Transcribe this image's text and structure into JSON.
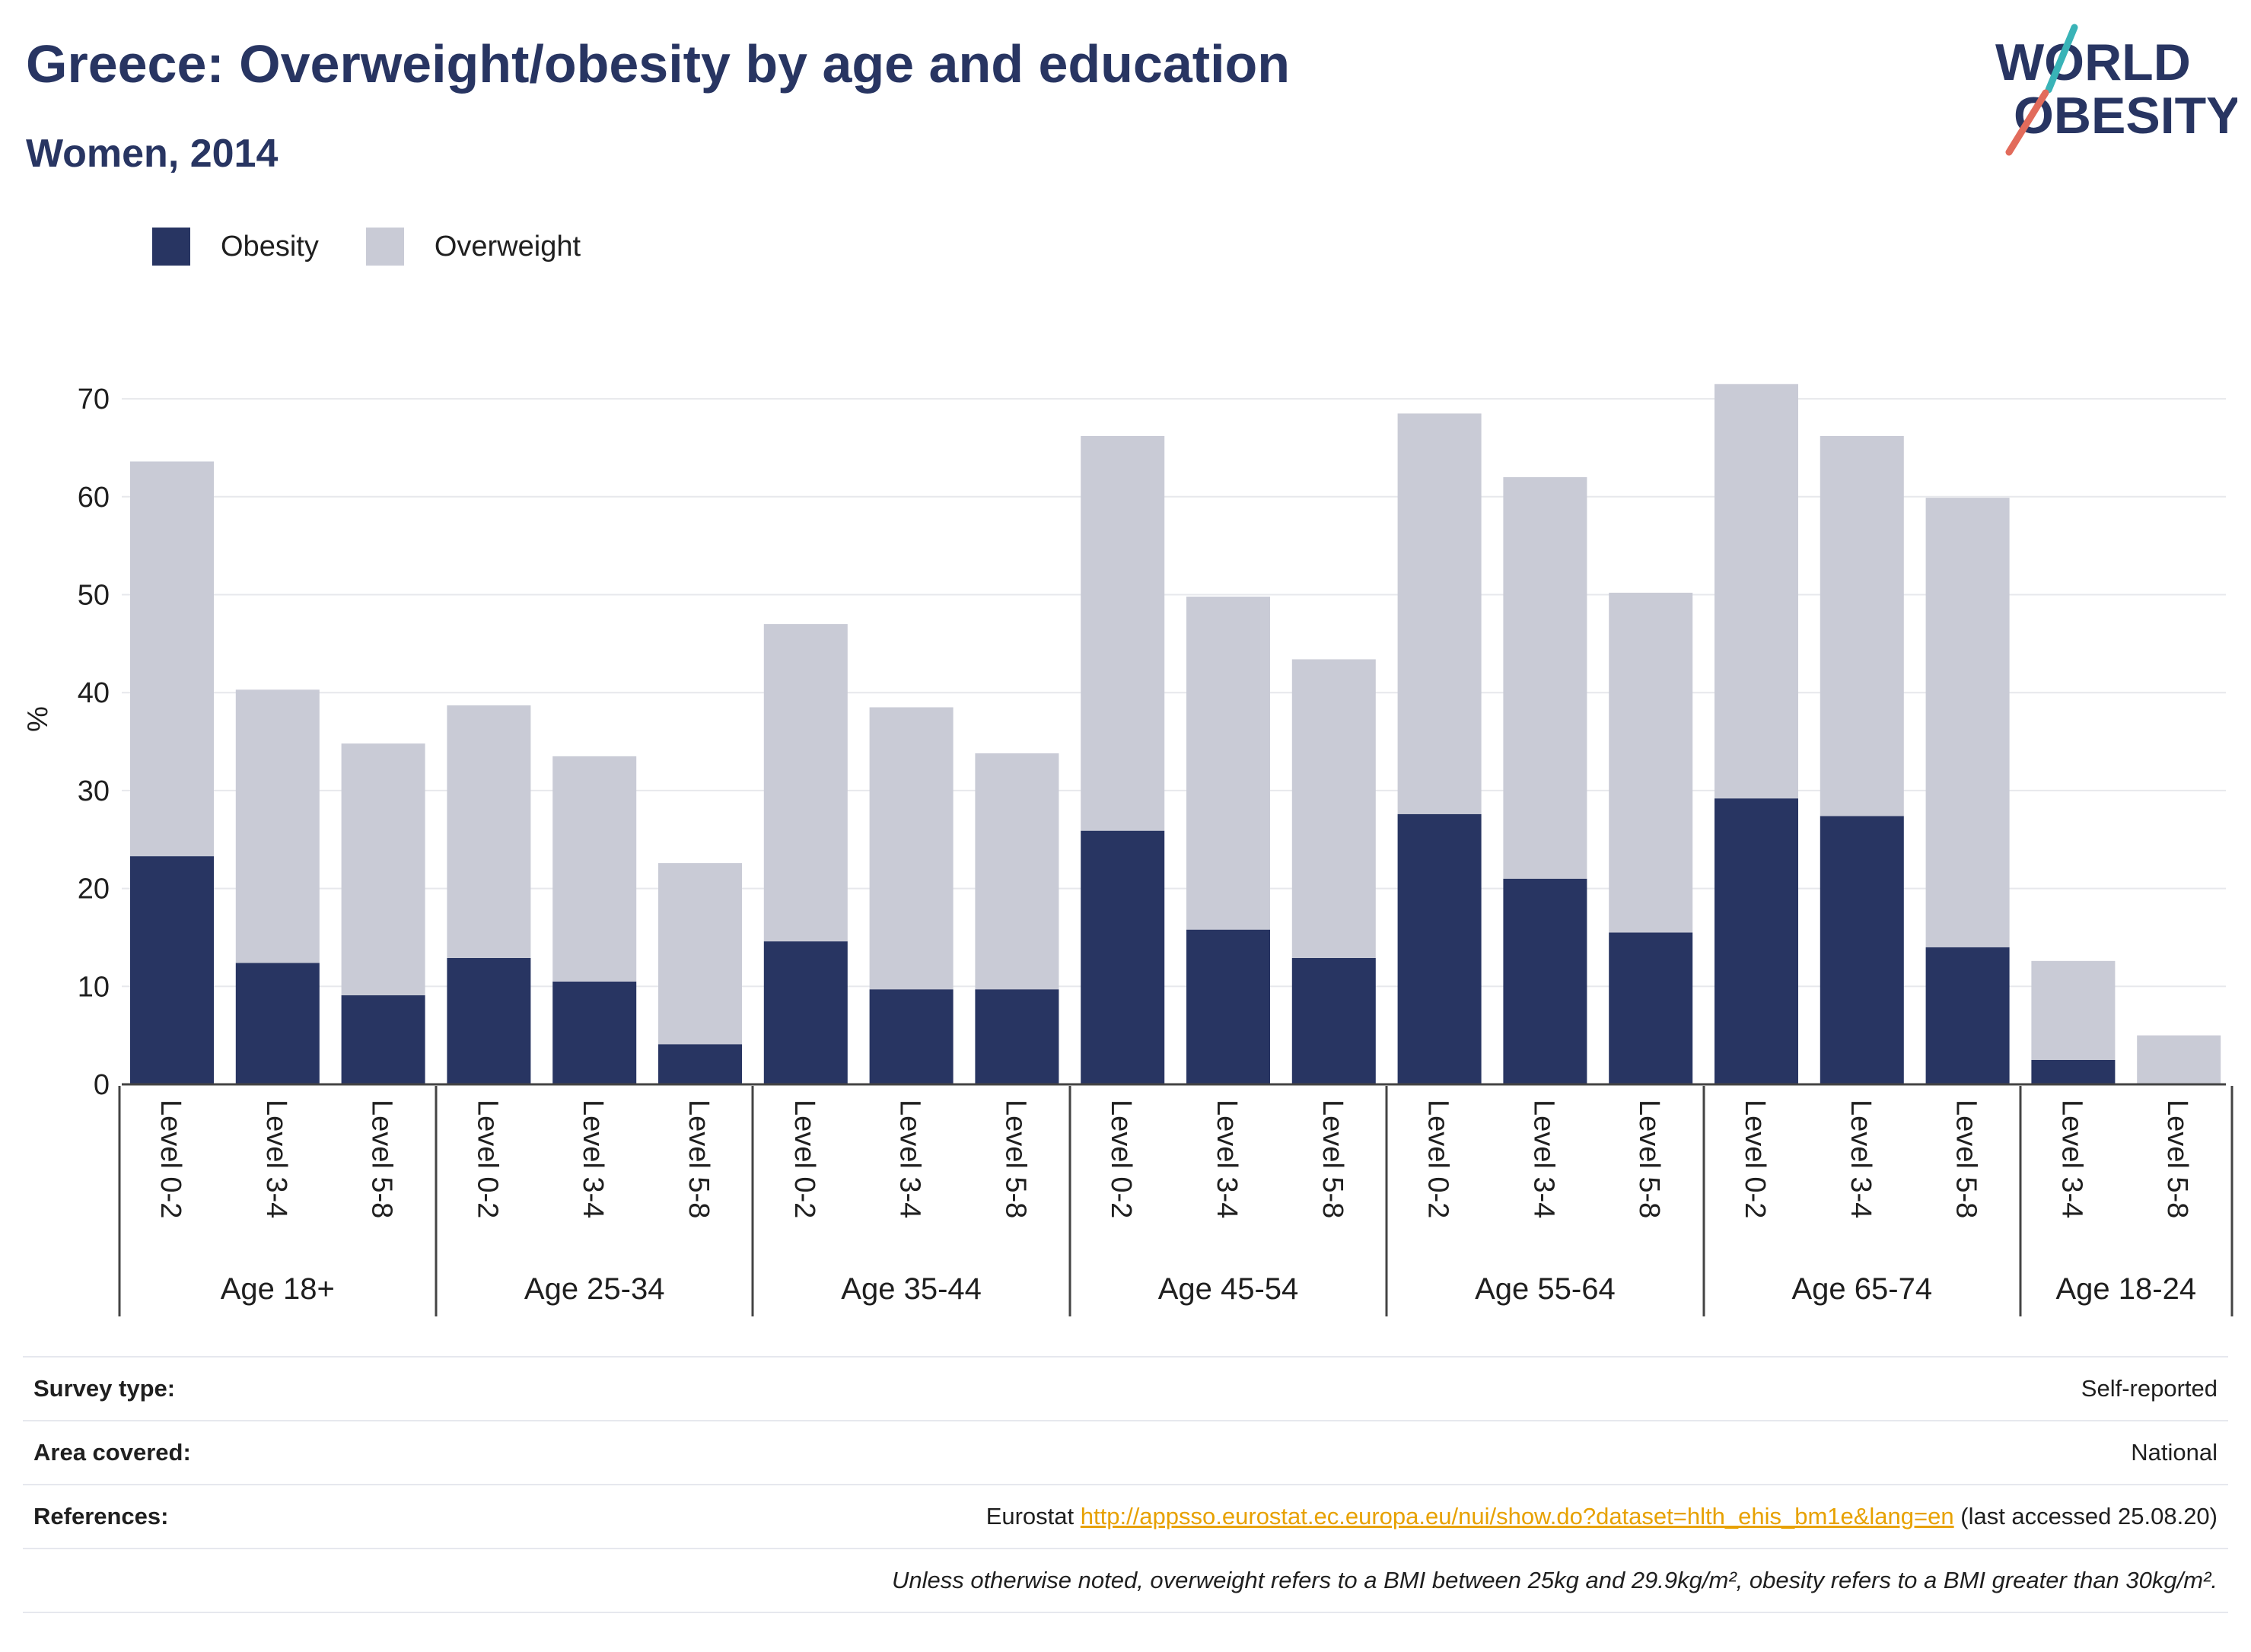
{
  "header": {
    "title": "Greece: Overweight/obesity by age and education",
    "subtitle": "Women, 2014"
  },
  "logo": {
    "line1": "WORLD",
    "line2": "OBESITY",
    "icon": "world-obesity-slash-logo"
  },
  "colors": {
    "obesity": "#283562",
    "overweight": "#c9cbd6",
    "accent_teal": "#39b3b7",
    "accent_coral": "#e26b5b",
    "link": "#e7a100"
  },
  "chart_data": {
    "type": "bar",
    "stacked": true,
    "ylabel": "%",
    "ylim": [
      0,
      72
    ],
    "yticks": [
      0,
      10,
      20,
      30,
      40,
      50,
      60,
      70
    ],
    "grid": true,
    "legend_position": "top-left",
    "groups": [
      {
        "label": "Age 18+",
        "categories": [
          "Level 0-2",
          "Level 3-4",
          "Level 5-8"
        ]
      },
      {
        "label": "Age 25-34",
        "categories": [
          "Level 0-2",
          "Level 3-4",
          "Level 5-8"
        ]
      },
      {
        "label": "Age 35-44",
        "categories": [
          "Level 0-2",
          "Level 3-4",
          "Level 5-8"
        ]
      },
      {
        "label": "Age 45-54",
        "categories": [
          "Level 0-2",
          "Level 3-4",
          "Level 5-8"
        ]
      },
      {
        "label": "Age 55-64",
        "categories": [
          "Level 0-2",
          "Level 3-4",
          "Level 5-8"
        ]
      },
      {
        "label": "Age 65-74",
        "categories": [
          "Level 0-2",
          "Level 3-4",
          "Level 5-8"
        ]
      },
      {
        "label": "Age 18-24",
        "categories": [
          "Level 3-4",
          "Level 5-8"
        ]
      }
    ],
    "series": [
      {
        "name": "Obesity",
        "values": [
          23.3,
          12.4,
          9.1,
          12.9,
          10.5,
          4.1,
          14.6,
          9.7,
          9.7,
          25.9,
          15.8,
          12.9,
          27.6,
          21.0,
          15.5,
          29.2,
          27.4,
          14.0,
          2.5,
          0.0
        ]
      },
      {
        "name": "Overweight",
        "values": [
          40.3,
          27.9,
          25.7,
          25.8,
          23.0,
          18.5,
          32.4,
          28.8,
          24.1,
          40.3,
          34.0,
          30.5,
          40.9,
          41.0,
          34.7,
          42.3,
          38.8,
          45.9,
          10.1,
          5.0
        ]
      }
    ]
  },
  "info": {
    "survey_label": "Survey type:",
    "survey_value": "Self-reported",
    "area_label": "Area covered:",
    "area_value": "National",
    "ref_label": "References:",
    "ref_source": "Eurostat",
    "ref_url": "http://appsso.eurostat.ec.europa.eu/nui/show.do?dataset=hlth_ehis_bm1e&lang=en",
    "ref_accessed": "(last accessed 25.08.20)",
    "note": "Unless otherwise noted, overweight refers to a BMI between 25kg and 29.9kg/m², obesity refers to a BMI greater than 30kg/m²."
  }
}
